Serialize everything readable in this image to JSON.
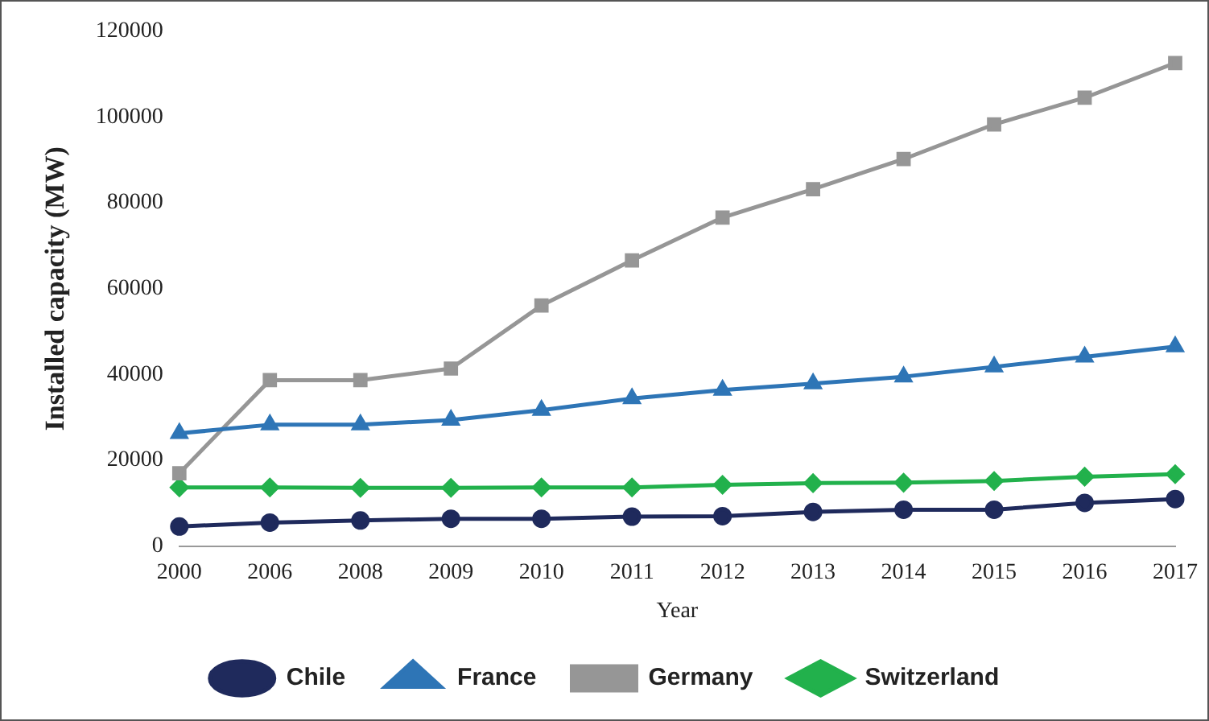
{
  "chart_data": {
    "type": "line",
    "xlabel": "Year",
    "ylabel": "Installed capacity (MW)",
    "categories": [
      "2000",
      "2006",
      "2008",
      "2009",
      "2010",
      "2011",
      "2012",
      "2013",
      "2014",
      "2015",
      "2016",
      "2017"
    ],
    "ylim": [
      0,
      120000
    ],
    "yticks": [
      0,
      20000,
      40000,
      60000,
      80000,
      100000,
      120000
    ],
    "grid": false,
    "legend": "bottom",
    "series": [
      {
        "name": "Chile",
        "color": "#1f2a5c",
        "marker": "circle",
        "values": [
          4600,
          5500,
          6000,
          6400,
          6400,
          6900,
          7000,
          8000,
          8500,
          8500,
          10100,
          11000
        ]
      },
      {
        "name": "France",
        "color": "#2e75b6",
        "marker": "triangle",
        "values": [
          26300,
          28300,
          28300,
          29400,
          31700,
          34400,
          36400,
          37900,
          39500,
          41800,
          44100,
          46500
        ]
      },
      {
        "name": "Germany",
        "color": "#969696",
        "marker": "square",
        "values": [
          17000,
          38700,
          38700,
          41400,
          56100,
          66600,
          76600,
          83200,
          90200,
          98300,
          104500,
          112600
        ]
      },
      {
        "name": "Switzerland",
        "color": "#22b14c",
        "marker": "diamond",
        "values": [
          13700,
          13700,
          13600,
          13600,
          13700,
          13700,
          14300,
          14700,
          14800,
          15200,
          16200,
          16800
        ]
      }
    ]
  }
}
